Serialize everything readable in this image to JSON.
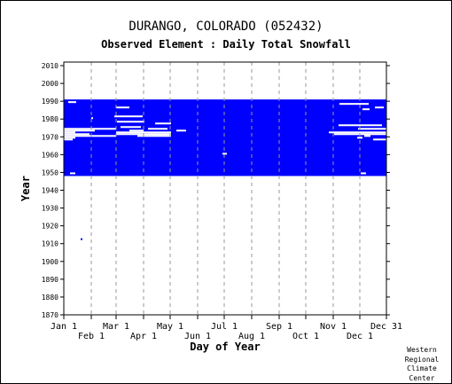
{
  "chart_data": {
    "type": "heatmap",
    "title": "DURANGO, COLORADO   (052432)",
    "subtitle": "Observed Element : Daily Total Snowfall",
    "xlabel": "Day of Year",
    "ylabel": "Year",
    "credit": [
      "Western",
      "Regional",
      "Climate",
      "Center"
    ],
    "fill_color": "#0000ff",
    "xlim": [
      1,
      365
    ],
    "ylim": [
      1870,
      2012
    ],
    "x_ticks": [
      {
        "label": "Jan 1",
        "day": 1
      },
      {
        "label": "Feb 1",
        "day": 32
      },
      {
        "label": "Mar 1",
        "day": 60
      },
      {
        "label": "Apr 1",
        "day": 91
      },
      {
        "label": "May 1",
        "day": 121
      },
      {
        "label": "Jun 1",
        "day": 152
      },
      {
        "label": "Jul 1",
        "day": 182
      },
      {
        "label": "Aug 1",
        "day": 213
      },
      {
        "label": "Sep 1",
        "day": 244
      },
      {
        "label": "Oct 1",
        "day": 274
      },
      {
        "label": "Nov 1",
        "day": 305
      },
      {
        "label": "Dec 1",
        "day": 335
      },
      {
        "label": "Dec 31",
        "day": 365
      }
    ],
    "y_ticks": [
      1870,
      1880,
      1890,
      1900,
      1910,
      1920,
      1930,
      1940,
      1950,
      1960,
      1970,
      1980,
      1990,
      2000,
      2010
    ],
    "data_blocks": [
      {
        "start_year": 1948,
        "end_year": 1990,
        "start_day": 1,
        "end_day": 365
      }
    ],
    "isolated_points": [
      {
        "year": 1912.5,
        "day": 20
      }
    ],
    "missing_segments": [
      {
        "year": 1989,
        "start_day": 6,
        "end_day": 15
      },
      {
        "year": 1988,
        "start_day": 312,
        "end_day": 345
      },
      {
        "year": 1986,
        "start_day": 60,
        "end_day": 75
      },
      {
        "year": 1986,
        "start_day": 352,
        "end_day": 362
      },
      {
        "year": 1985,
        "start_day": 338,
        "end_day": 346
      },
      {
        "year": 1981,
        "start_day": 58,
        "end_day": 90
      },
      {
        "year": 1980,
        "start_day": 32,
        "end_day": 34
      },
      {
        "year": 1978,
        "start_day": 61,
        "end_day": 92
      },
      {
        "year": 1977,
        "start_day": 104,
        "end_day": 122
      },
      {
        "year": 1976,
        "start_day": 311,
        "end_day": 360
      },
      {
        "year": 1975,
        "start_day": 65,
        "end_day": 88
      },
      {
        "year": 1974,
        "start_day": 1,
        "end_day": 60
      },
      {
        "year": 1974,
        "start_day": 96,
        "end_day": 118
      },
      {
        "year": 1974,
        "start_day": 333,
        "end_day": 365
      },
      {
        "year": 1973,
        "start_day": 1,
        "end_day": 36
      },
      {
        "year": 1973,
        "start_day": 75,
        "end_day": 91
      },
      {
        "year": 1973,
        "start_day": 128,
        "end_day": 139
      },
      {
        "year": 1972,
        "start_day": 1,
        "end_day": 14
      },
      {
        "year": 1972,
        "start_day": 60,
        "end_day": 122
      },
      {
        "year": 1972,
        "start_day": 300,
        "end_day": 365
      },
      {
        "year": 1971,
        "start_day": 1,
        "end_day": 30
      },
      {
        "year": 1971,
        "start_day": 60,
        "end_day": 122
      },
      {
        "year": 1971,
        "start_day": 306,
        "end_day": 365
      },
      {
        "year": 1970,
        "start_day": 1,
        "end_day": 60
      },
      {
        "year": 1970,
        "start_day": 84,
        "end_day": 122
      },
      {
        "year": 1970,
        "start_day": 340,
        "end_day": 347
      },
      {
        "year": 1969,
        "start_day": 1,
        "end_day": 14
      },
      {
        "year": 1969,
        "start_day": 332,
        "end_day": 338
      },
      {
        "year": 1968,
        "start_day": 1,
        "end_day": 11
      },
      {
        "year": 1968,
        "start_day": 350,
        "end_day": 365
      },
      {
        "year": 1960,
        "start_day": 180,
        "end_day": 185
      },
      {
        "year": 1949,
        "start_day": 8,
        "end_day": 14
      },
      {
        "year": 1949,
        "start_day": 336,
        "end_day": 342
      }
    ]
  }
}
